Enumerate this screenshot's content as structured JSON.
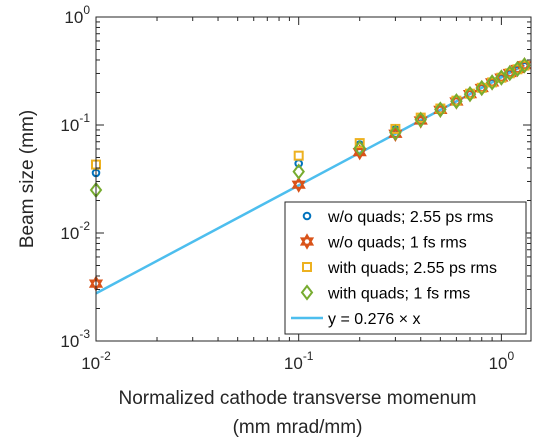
{
  "chart_data": {
    "type": "scatter",
    "xscale": "log",
    "yscale": "log",
    "xlim": [
      0.01,
      1.4
    ],
    "ylim": [
      0.001,
      1
    ],
    "x_ticks": [
      {
        "base": "10",
        "exp": "-2"
      },
      {
        "base": "10",
        "exp": "-1"
      },
      {
        "base": "10",
        "exp": "0"
      }
    ],
    "y_ticks": [
      {
        "base": "10",
        "exp": "-3"
      },
      {
        "base": "10",
        "exp": "-2"
      },
      {
        "base": "10",
        "exp": "-1"
      },
      {
        "base": "10",
        "exp": "0"
      }
    ],
    "xlabel_line1": "Normalized cathode transverse momenum",
    "xlabel_line2": "(mm mrad/mm)",
    "ylabel": "Beam size (mm)",
    "legend_position": "bottom-right",
    "grid": false,
    "series": [
      {
        "name": "w/o quads; 2.55 ps rms",
        "marker": "circle",
        "color": "#0072BD",
        "x": [
          0.01,
          0.1,
          0.2,
          0.3,
          0.4,
          0.5,
          0.6,
          0.7,
          0.8,
          0.9,
          1.0,
          1.1,
          1.2,
          1.3
        ],
        "y": [
          0.036,
          0.044,
          0.066,
          0.091,
          0.116,
          0.14,
          0.166,
          0.192,
          0.218,
          0.244,
          0.27,
          0.297,
          0.323,
          0.35
        ]
      },
      {
        "name": "w/o quads; 1 fs rms",
        "marker": "hexagram",
        "color": "#D95319",
        "x": [
          0.01,
          0.1,
          0.2,
          0.3,
          0.4,
          0.5,
          0.6,
          0.7,
          0.8,
          0.9,
          1.0,
          1.1,
          1.2,
          1.3
        ],
        "y": [
          0.0034,
          0.028,
          0.056,
          0.083,
          0.11,
          0.138,
          0.165,
          0.193,
          0.22,
          0.248,
          0.275,
          0.303,
          0.33,
          0.358
        ]
      },
      {
        "name": "with quads; 2.55 ps rms",
        "marker": "square",
        "color": "#EDB120",
        "x": [
          0.01,
          0.1,
          0.2,
          0.3,
          0.4,
          0.5,
          0.6,
          0.7,
          0.8,
          0.9,
          1.0,
          1.1,
          1.2,
          1.3
        ],
        "y": [
          0.043,
          0.052,
          0.068,
          0.092,
          0.117,
          0.142,
          0.168,
          0.195,
          0.221,
          0.248,
          0.274,
          0.301,
          0.328,
          0.355
        ]
      },
      {
        "name": "with quads; 1 fs rms",
        "marker": "diamond",
        "color": "#77AC30",
        "x": [
          0.01,
          0.1,
          0.2,
          0.3,
          0.4,
          0.5,
          0.6,
          0.7,
          0.8,
          0.9,
          1.0,
          1.1,
          1.2,
          1.3
        ],
        "y": [
          0.025,
          0.037,
          0.061,
          0.085,
          0.112,
          0.139,
          0.166,
          0.193,
          0.22,
          0.248,
          0.275,
          0.302,
          0.33,
          0.357
        ]
      },
      {
        "name": "y = 0.276 × x",
        "marker": "line",
        "color": "#4DBEEE",
        "x": [
          0.01,
          1.3
        ],
        "y": [
          0.00276,
          0.3588
        ]
      }
    ]
  }
}
